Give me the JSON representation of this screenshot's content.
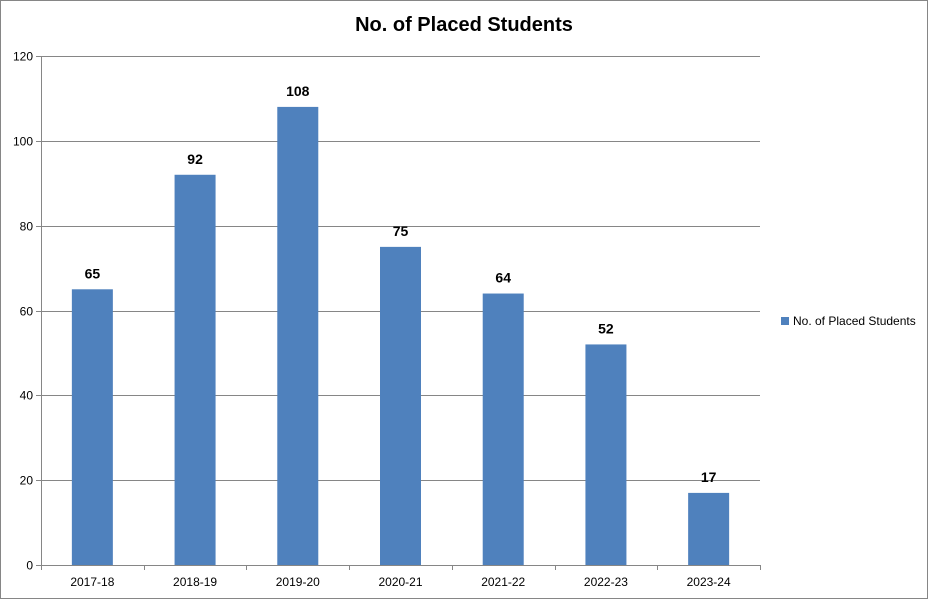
{
  "chart_data": {
    "type": "bar",
    "title": "No. of Placed Students",
    "categories": [
      "2017-18",
      "2018-19",
      "2019-20",
      "2020-21",
      "2021-22",
      "2022-23",
      "2023-24"
    ],
    "series": [
      {
        "name": "No. of Placed Students",
        "values": [
          65,
          92,
          108,
          75,
          64,
          52,
          17
        ],
        "color": "#4f81bd"
      }
    ],
    "data_labels": true,
    "ylim": [
      0,
      120
    ],
    "yticks": [
      0,
      20,
      40,
      60,
      80,
      100,
      120
    ],
    "grid": true,
    "legend_position": "right"
  }
}
